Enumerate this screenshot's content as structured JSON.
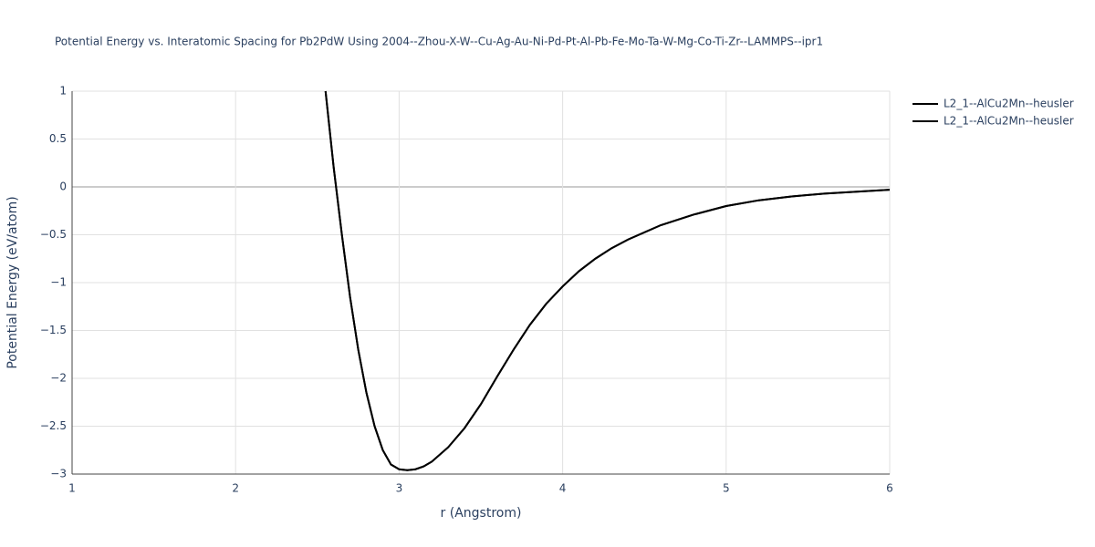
{
  "chart_data": {
    "type": "line",
    "title": "Potential Energy vs. Interatomic Spacing for Pb2PdW Using 2004--Zhou-X-W--Cu-Ag-Au-Ni-Pd-Pt-Al-Pb-Fe-Mo-Ta-W-Mg-Co-Ti-Zr--LAMMPS--ipr1",
    "x_label": "r (Angstrom)",
    "y_label": "Potential Energy (eV/atom)",
    "xlim": [
      1,
      6
    ],
    "ylim": [
      -3,
      1
    ],
    "xticks": [
      1,
      2,
      3,
      4,
      5,
      6
    ],
    "yticks": [
      {
        "value": -3,
        "label": "−3"
      },
      {
        "value": -2.5,
        "label": "−2.5"
      },
      {
        "value": -2,
        "label": "−2"
      },
      {
        "value": -1.5,
        "label": "−1.5"
      },
      {
        "value": -1,
        "label": "−1"
      },
      {
        "value": -0.5,
        "label": "−0.5"
      },
      0,
      0.5,
      1
    ],
    "grid": true,
    "legend": "top-right",
    "x": [
      2.55,
      2.6,
      2.65,
      2.7,
      2.75,
      2.8,
      2.85,
      2.9,
      2.95,
      3.0,
      3.05,
      3.1,
      3.15,
      3.2,
      3.3,
      3.4,
      3.5,
      3.6,
      3.7,
      3.8,
      3.9,
      4.0,
      4.1,
      4.2,
      4.3,
      4.4,
      4.6,
      4.8,
      5.0,
      5.2,
      5.4,
      5.6,
      5.8,
      6.0
    ],
    "series": [
      {
        "name": "L2_1--AlCu2Mn--heusler",
        "color": "#000000",
        "values": [
          1.0,
          0.2,
          -0.5,
          -1.15,
          -1.7,
          -2.15,
          -2.5,
          -2.75,
          -2.9,
          -2.95,
          -2.96,
          -2.95,
          -2.92,
          -2.87,
          -2.72,
          -2.52,
          -2.27,
          -1.98,
          -1.7,
          -1.44,
          -1.22,
          -1.04,
          -0.88,
          -0.75,
          -0.64,
          -0.55,
          -0.4,
          -0.29,
          -0.2,
          -0.14,
          -0.1,
          -0.07,
          -0.05,
          -0.03
        ]
      },
      {
        "name": "L2_1--AlCu2Mn--heusler",
        "color": "#000000",
        "values": [
          1.0,
          0.2,
          -0.5,
          -1.15,
          -1.7,
          -2.15,
          -2.5,
          -2.75,
          -2.9,
          -2.95,
          -2.96,
          -2.95,
          -2.92,
          -2.87,
          -2.72,
          -2.52,
          -2.27,
          -1.98,
          -1.7,
          -1.44,
          -1.22,
          -1.04,
          -0.88,
          -0.75,
          -0.64,
          -0.55,
          -0.4,
          -0.29,
          -0.2,
          -0.14,
          -0.1,
          -0.07,
          -0.05,
          -0.03
        ]
      }
    ]
  }
}
